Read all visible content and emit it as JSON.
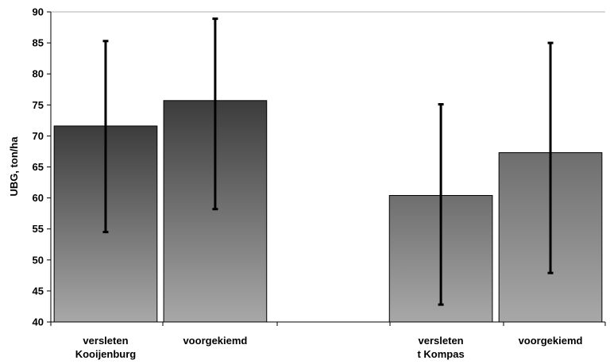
{
  "chart_data": {
    "type": "bar",
    "title": "",
    "xlabel": "",
    "ylabel": "UBG, ton/ha",
    "ylim": [
      40,
      90
    ],
    "yticks": [
      40,
      45,
      50,
      55,
      60,
      65,
      70,
      75,
      80,
      85,
      90
    ],
    "grid": false,
    "legend": "none",
    "groups": [
      {
        "label_lines": [
          "",
          ""
        ]
      },
      {
        "label_lines": [
          "",
          ""
        ]
      }
    ],
    "bars": [
      {
        "group": 0,
        "label_lines": [
          "versleten",
          "Kooijenburg"
        ],
        "value": 71.6,
        "err_low": 54.5,
        "err_high": 85.3,
        "style": "dark"
      },
      {
        "group": 0,
        "label_lines": [
          "voorgekiemd"
        ],
        "value": 75.7,
        "err_low": 58.2,
        "err_high": 88.9,
        "style": "dark"
      },
      {
        "group": 1,
        "label_lines": [
          "versleten",
          "t Kompas"
        ],
        "value": 60.4,
        "err_low": 42.8,
        "err_high": 75.1,
        "style": "light"
      },
      {
        "group": 1,
        "label_lines": [
          "voorgekiemd"
        ],
        "value": 67.3,
        "err_low": 47.9,
        "err_high": 85.0,
        "style": "light"
      }
    ],
    "colors": {
      "dark_top": "#3c3c3c",
      "dark_bottom": "#a8a8a8",
      "light_top": "#6e6e6e",
      "light_bottom": "#a8a8a8",
      "bar_stroke": "#000000",
      "axis": "#000000",
      "top_border": "#b0b0b0"
    }
  }
}
